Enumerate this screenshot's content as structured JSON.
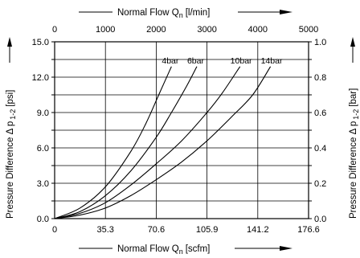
{
  "chart_data": {
    "type": "line",
    "grid": true,
    "axes": {
      "x_bottom": {
        "label": "Normal Flow Q",
        "sub": "n",
        "unit": "[scfm]",
        "range": [
          0,
          176.6
        ],
        "ticks": [
          "0",
          "35.3",
          "70.6",
          "105.9",
          "141.2",
          "176.6"
        ]
      },
      "x_top": {
        "label": "Normal Flow Q",
        "sub": "n",
        "unit": "[l/min]",
        "range": [
          0,
          5000
        ],
        "ticks": [
          "0",
          "1000",
          "2000",
          "3000",
          "4000",
          "5000"
        ]
      },
      "y_left": {
        "label": "Pressure Difference Δ p",
        "sub": "1-2",
        "unit": "[psi]",
        "range": [
          0,
          15
        ],
        "ticks": [
          "0.0",
          "3.0",
          "6.0",
          "9.0",
          "12.0",
          "15.0"
        ]
      },
      "y_right": {
        "label": "Pressure Difference Δ p",
        "sub": "1-2",
        "unit": "[bar]",
        "range": [
          0,
          1
        ],
        "ticks": [
          "0.0",
          "0.2",
          "0.4",
          "0.6",
          "0.8",
          "1.0"
        ]
      }
    },
    "series": [
      {
        "name": "4bar",
        "x_lmin": [
          0,
          500,
          1000,
          1500,
          1800,
          2050,
          2300
        ],
        "y_bar": [
          0,
          0.06,
          0.18,
          0.38,
          0.54,
          0.7,
          0.86
        ]
      },
      {
        "name": "6bar",
        "x_lmin": [
          0,
          500,
          1000,
          1500,
          2000,
          2300,
          2600,
          2800
        ],
        "y_bar": [
          0,
          0.04,
          0.13,
          0.27,
          0.46,
          0.6,
          0.75,
          0.86
        ]
      },
      {
        "name": "10bar",
        "x_lmin": [
          0,
          500,
          1000,
          1500,
          2000,
          2500,
          3000,
          3300,
          3650
        ],
        "y_bar": [
          0,
          0.03,
          0.09,
          0.19,
          0.31,
          0.44,
          0.6,
          0.71,
          0.86
        ]
      },
      {
        "name": "14bar",
        "x_lmin": [
          0,
          500,
          1000,
          1500,
          2000,
          2500,
          3000,
          3500,
          3900,
          4250
        ],
        "y_bar": [
          0,
          0.02,
          0.06,
          0.13,
          0.22,
          0.32,
          0.44,
          0.58,
          0.7,
          0.86
        ]
      }
    ]
  }
}
